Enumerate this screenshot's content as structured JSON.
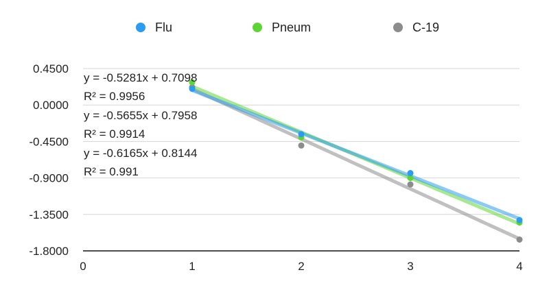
{
  "chart_data": {
    "type": "scatter",
    "series": [
      {
        "name": "Flu",
        "color": "#2b9cf0",
        "x": [
          1,
          2,
          3,
          4
        ],
        "y": [
          0.2,
          -0.36,
          -0.84,
          -1.42
        ],
        "trend": {
          "slope": -0.5281,
          "intercept": 0.7098
        }
      },
      {
        "name": "Pneum",
        "color": "#5ed535",
        "x": [
          1,
          2,
          3,
          4
        ],
        "y": [
          0.28,
          -0.4,
          -0.9,
          -1.45
        ],
        "trend": {
          "slope": -0.5655,
          "intercept": 0.7958
        }
      },
      {
        "name": "C-19",
        "color": "#8c8c8c",
        "x": [
          1,
          2,
          3,
          4
        ],
        "y": [
          0.22,
          -0.5,
          -0.98,
          -1.66
        ],
        "trend": {
          "slope": -0.6165,
          "intercept": 0.8144
        }
      }
    ],
    "xlim": [
      0,
      4
    ],
    "ylim": [
      -1.8,
      0.45
    ],
    "xticks": [
      "0",
      "1",
      "2",
      "3",
      "4"
    ],
    "yticks": [
      "0.4500",
      "0.0000",
      "-0.4500",
      "-0.9000",
      "-1.3500",
      "-1.8000"
    ],
    "ytick_values": [
      0.45,
      0,
      -0.45,
      -0.9,
      -1.35,
      -1.8
    ],
    "equations": [
      "y = -0.5281x + 0.7098",
      "R² = 0.9956",
      "y = -0.5655x + 0.7958",
      "R² = 0.9914",
      "y = -0.6165x + 0.8144",
      "R² = 0.991"
    ],
    "legend_position": "top",
    "grid": true
  }
}
